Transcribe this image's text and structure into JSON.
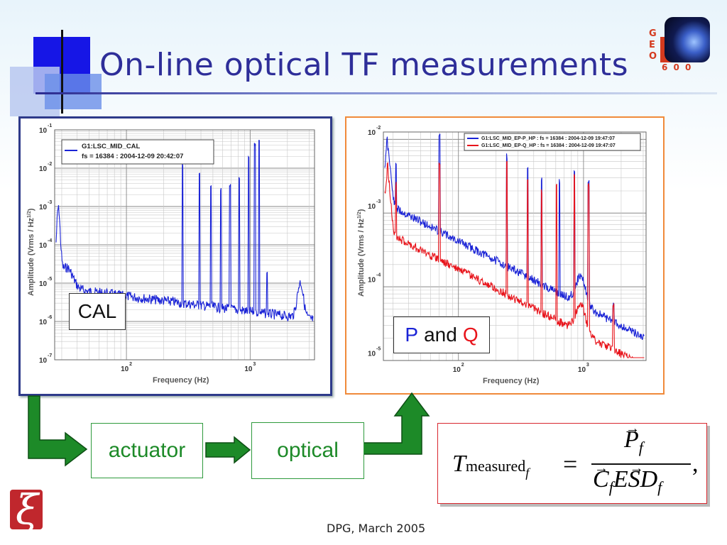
{
  "slide": {
    "title": "On-line optical TF measurements",
    "footer": "DPG, March 2005"
  },
  "logo": {
    "geo_letters": [
      "G",
      "E",
      "O"
    ],
    "geo_number": "6 0 0"
  },
  "colors": {
    "title": "#2e2e99",
    "series_blue": "#1a23d6",
    "series_red": "#e8141b",
    "flow_green": "#1d8a28",
    "left_panel_border": "#2e3a8a",
    "right_panel_border": "#f08a3a",
    "formula_border": "#d8262e"
  },
  "left_plot": {
    "legend_line1": "G1:LSC_MID_CAL",
    "legend_line2": "fs = 16384 : 2004-12-09 20:42:07",
    "ylabel": "Amplitude (Vrms / Hz",
    "ylabel_exp": "1/2",
    "ylabel_close": ")",
    "xlabel": "Frequency (Hz)",
    "y_ticks": [
      {
        "base": "10",
        "exp": "-1"
      },
      {
        "base": "10",
        "exp": "-2"
      },
      {
        "base": "10",
        "exp": "-3"
      },
      {
        "base": "10",
        "exp": "-4"
      },
      {
        "base": "10",
        "exp": "-5"
      },
      {
        "base": "10",
        "exp": "-6"
      },
      {
        "base": "10",
        "exp": "-7"
      }
    ],
    "x_ticks": [
      {
        "base": "10",
        "exp": "2"
      },
      {
        "base": "10",
        "exp": "3"
      }
    ],
    "overlay_label": "CAL"
  },
  "right_plot": {
    "legend_line1": "G1:LSC_MID_EP-P_HP : fs = 16384 : 2004-12-09 19:47:07",
    "legend_line2": "G1:LSC_MID_EP-Q_HP : fs = 16384 : 2004-12-09 19:47:07",
    "ylabel": "Amplitude (Vrms / Hz",
    "ylabel_exp": "1/2",
    "ylabel_close": ")",
    "xlabel": "Frequency (Hz)",
    "y_ticks": [
      {
        "base": "10",
        "exp": "-2"
      },
      {
        "base": "10",
        "exp": "-3"
      },
      {
        "base": "10",
        "exp": "-4"
      },
      {
        "base": "10",
        "exp": "-5"
      }
    ],
    "x_ticks": [
      {
        "base": "10",
        "exp": "2"
      },
      {
        "base": "10",
        "exp": "3"
      }
    ],
    "overlay_p": "P",
    "overlay_and": "and",
    "overlay_q": "Q"
  },
  "flow": {
    "actuator": "actuator",
    "optical": "optical"
  },
  "formula": {
    "T": "T",
    "measured": "measured",
    "sub_f": "f",
    "equals": "=",
    "numer_P": "P",
    "numer_f": "f",
    "denom_C": "C",
    "denom_f": "f",
    "denom_E": "E",
    "denom_S": "S",
    "denom_D": "D",
    "denom_f2": "f",
    "comma": ","
  }
}
